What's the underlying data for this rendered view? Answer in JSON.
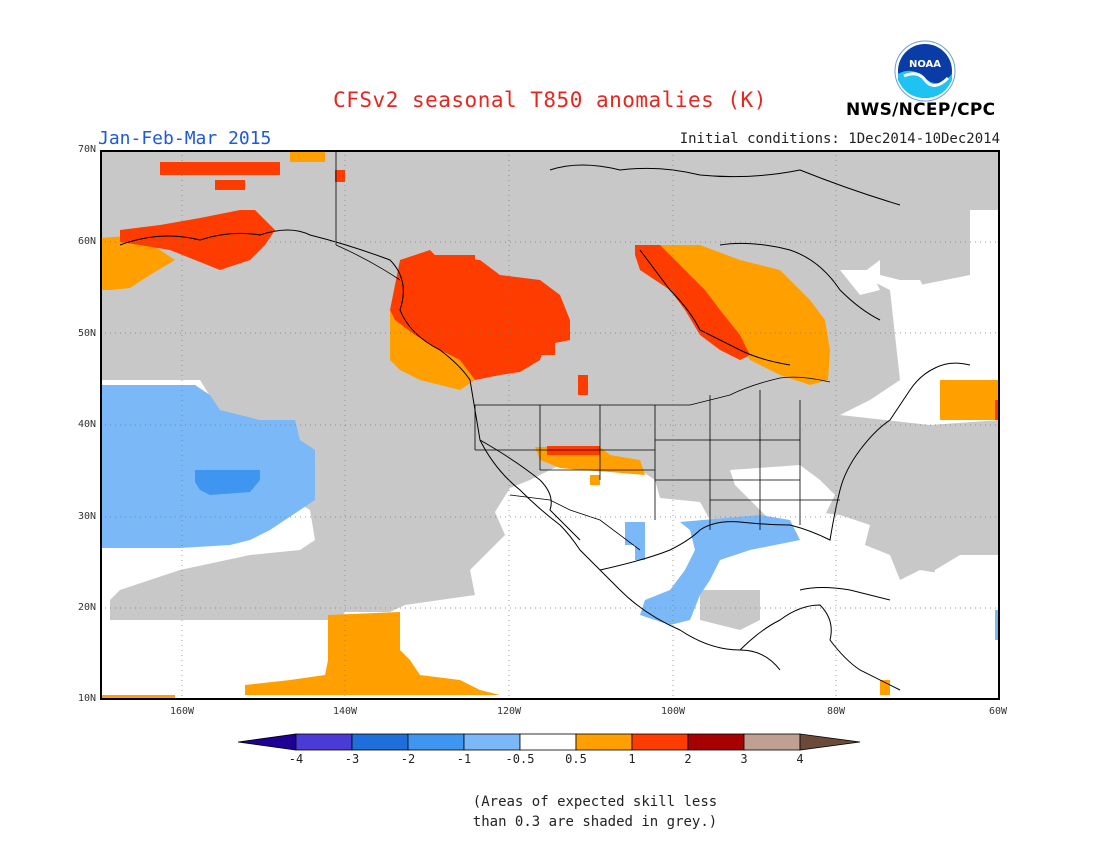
{
  "title": "CFSv2 seasonal T850 anomalies (K)",
  "period": "Jan-Feb-Mar 2015",
  "initial_conditions": "Initial conditions: 1Dec2014-10Dec2014",
  "agency": "NWS/NCEP/CPC",
  "logo_text": "NOAA",
  "colors": {
    "skill_grey": "#c8c8c8",
    "neg_4": "#1f0096",
    "neg_3": "#4a3ad6",
    "neg_2": "#1e6fd9",
    "neg_1": "#3f96f0",
    "neg_05": "#7ab8f8",
    "neutral": "#ffffff",
    "pos_05": "#ffa000",
    "pos_1": "#ff3c00",
    "pos_2": "#a60000",
    "pos_3": "#c0a090",
    "pos_4": "#6b4a3a"
  },
  "map": {
    "lat_labels": [
      "70N",
      "60N",
      "50N",
      "40N",
      "30N",
      "20N",
      "10N"
    ],
    "lon_labels": [
      "160W",
      "140W",
      "120W",
      "100W",
      "80W",
      "60W"
    ],
    "lat_range": [
      10,
      70
    ],
    "lon_range": [
      -170,
      -60
    ]
  },
  "colorbar": {
    "labels": [
      "-4",
      "-3",
      "-2",
      "-1",
      "-0.5",
      "0.5",
      "1",
      "2",
      "3",
      "4"
    ]
  },
  "note_lines": [
    "(Areas of expected skill less",
    "than 0.3 are shaded in grey.)"
  ]
}
